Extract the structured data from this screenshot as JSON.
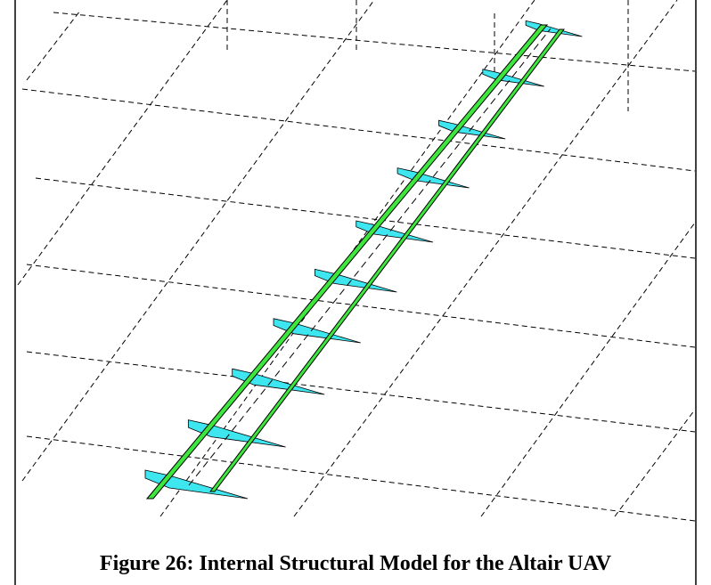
{
  "figure": {
    "caption": "Figure 26: Internal Structural Model for the Altair UAV"
  }
}
